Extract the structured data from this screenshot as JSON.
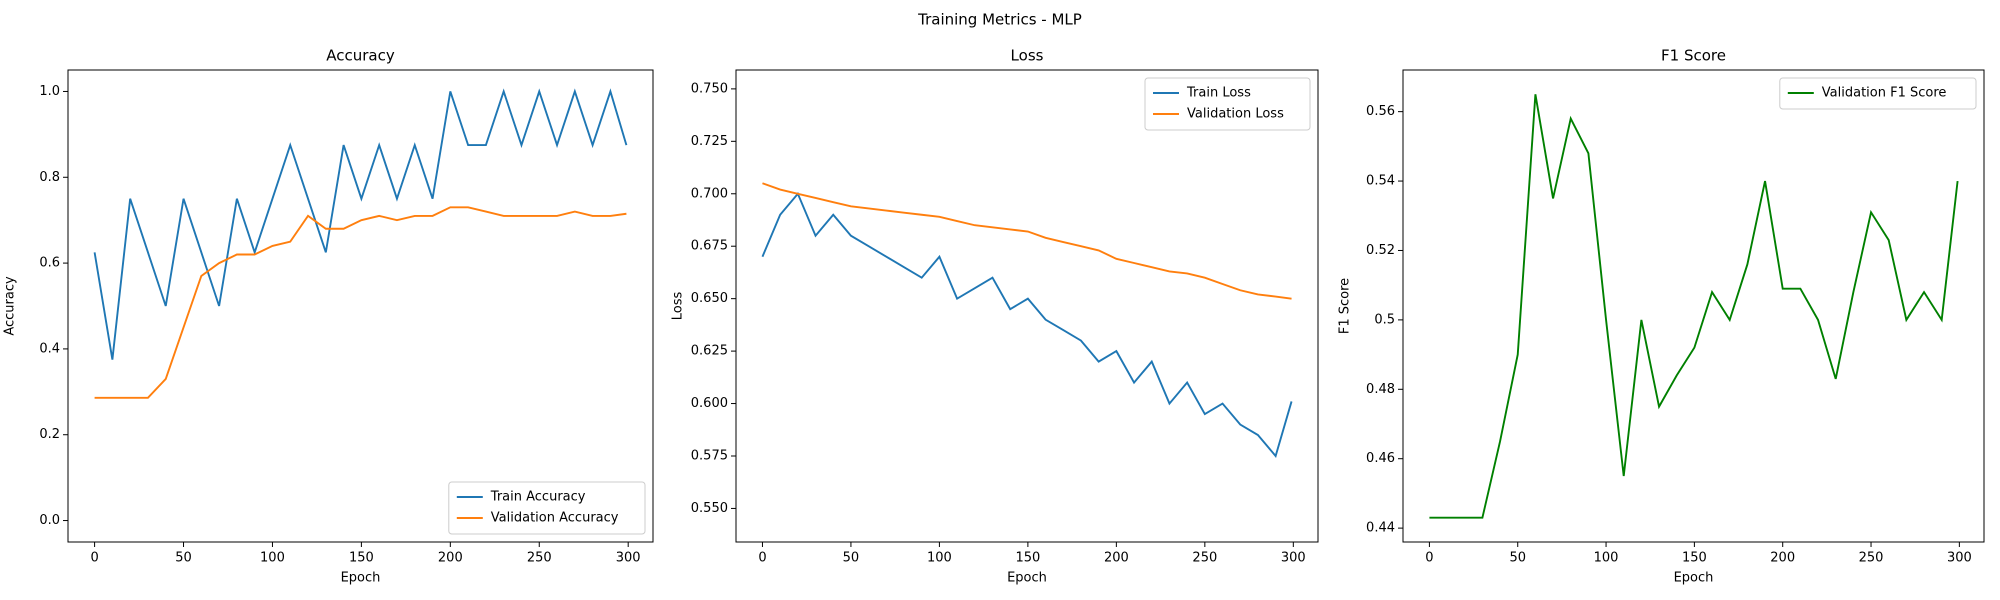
{
  "title": "Training Metrics - MLP",
  "chart_data": [
    {
      "type": "line",
      "title": "Accuracy",
      "xlabel": "Epoch",
      "ylabel": "Accuracy",
      "x": [
        0,
        10,
        20,
        30,
        40,
        50,
        60,
        70,
        80,
        90,
        100,
        110,
        120,
        130,
        140,
        150,
        160,
        170,
        180,
        190,
        200,
        210,
        220,
        230,
        240,
        250,
        260,
        270,
        280,
        290,
        299
      ],
      "series": [
        {
          "name": "Train Accuracy",
          "color": "#1f77b4",
          "values": [
            0.625,
            0.375,
            0.75,
            0.625,
            0.5,
            0.75,
            0.625,
            0.5,
            0.75,
            0.625,
            0.75,
            0.875,
            0.75,
            0.625,
            0.875,
            0.75,
            0.875,
            0.75,
            0.875,
            0.75,
            1.0,
            0.875,
            0.875,
            1.0,
            0.875,
            1.0,
            0.875,
            1.0,
            0.875,
            1.0,
            0.875
          ]
        },
        {
          "name": "Validation Accuracy",
          "color": "#ff7f0e",
          "values": [
            0.286,
            0.286,
            0.286,
            0.286,
            0.33,
            0.45,
            0.57,
            0.6,
            0.62,
            0.62,
            0.64,
            0.65,
            0.71,
            0.68,
            0.68,
            0.7,
            0.71,
            0.7,
            0.71,
            0.71,
            0.73,
            0.73,
            0.72,
            0.71,
            0.71,
            0.71,
            0.71,
            0.72,
            0.71,
            0.71,
            0.715
          ]
        }
      ],
      "xlim": [
        -14.95,
        313.95
      ],
      "ylim": [
        -0.05,
        1.05
      ],
      "xticks": [
        0,
        50,
        100,
        150,
        200,
        250,
        300
      ],
      "yticks": [
        {
          "value": 0,
          "label": "0.0"
        },
        {
          "value": 0.2,
          "label": "0.2"
        },
        {
          "value": 0.4,
          "label": "0.4"
        },
        {
          "value": 0.6,
          "label": "0.6"
        },
        {
          "value": 0.8,
          "label": "0.8"
        },
        {
          "value": 1,
          "label": "1.0"
        }
      ],
      "legend": "lower right"
    },
    {
      "type": "line",
      "title": "Loss",
      "xlabel": "Epoch",
      "ylabel": "Loss",
      "x": [
        0,
        10,
        20,
        30,
        40,
        50,
        60,
        70,
        80,
        90,
        100,
        110,
        120,
        130,
        140,
        150,
        160,
        170,
        180,
        190,
        200,
        210,
        220,
        230,
        240,
        250,
        260,
        270,
        280,
        290,
        299
      ],
      "series": [
        {
          "name": "Train Loss",
          "color": "#1f77b4",
          "values": [
            0.67,
            0.69,
            0.7,
            0.68,
            0.69,
            0.68,
            0.675,
            0.67,
            0.665,
            0.66,
            0.67,
            0.65,
            0.655,
            0.66,
            0.645,
            0.65,
            0.64,
            0.635,
            0.63,
            0.62,
            0.625,
            0.61,
            0.62,
            0.6,
            0.61,
            0.595,
            0.6,
            0.59,
            0.585,
            0.575,
            0.601
          ]
        },
        {
          "name": "Validation Loss",
          "color": "#ff7f0e",
          "values": [
            0.705,
            0.702,
            0.7,
            0.698,
            0.696,
            0.694,
            0.693,
            0.692,
            0.691,
            0.69,
            0.689,
            0.687,
            0.685,
            0.684,
            0.683,
            0.682,
            0.679,
            0.677,
            0.675,
            0.673,
            0.669,
            0.667,
            0.665,
            0.663,
            0.662,
            0.66,
            0.657,
            0.654,
            0.652,
            0.651,
            0.65
          ]
        }
      ],
      "xlim": [
        -14.95,
        313.95
      ],
      "ylim": [
        0.534,
        0.759
      ],
      "xticks": [
        0,
        50,
        100,
        150,
        200,
        250,
        300
      ],
      "yticks": [
        {
          "value": 0.55,
          "label": "0.550"
        },
        {
          "value": 0.575,
          "label": "0.575"
        },
        {
          "value": 0.6,
          "label": "0.600"
        },
        {
          "value": 0.625,
          "label": "0.625"
        },
        {
          "value": 0.65,
          "label": "0.650"
        },
        {
          "value": 0.675,
          "label": "0.675"
        },
        {
          "value": 0.7,
          "label": "0.700"
        },
        {
          "value": 0.725,
          "label": "0.725"
        },
        {
          "value": 0.75,
          "label": "0.750"
        }
      ],
      "legend": "upper right"
    },
    {
      "type": "line",
      "title": "F1 Score",
      "xlabel": "Epoch",
      "ylabel": "F1 Score",
      "x": [
        0,
        10,
        20,
        30,
        40,
        50,
        60,
        70,
        80,
        90,
        100,
        110,
        120,
        130,
        140,
        150,
        160,
        170,
        180,
        190,
        200,
        210,
        220,
        230,
        240,
        250,
        260,
        270,
        280,
        290,
        299
      ],
      "series": [
        {
          "name": "Validation F1 Score",
          "color": "#008000",
          "values": [
            0.443,
            0.443,
            0.443,
            0.443,
            0.465,
            0.49,
            0.565,
            0.535,
            0.558,
            0.548,
            0.5,
            0.455,
            0.5,
            0.475,
            0.484,
            0.492,
            0.508,
            0.5,
            0.516,
            0.54,
            0.509,
            0.509,
            0.5,
            0.483,
            0.508,
            0.531,
            0.523,
            0.5,
            0.508,
            0.5,
            0.54
          ]
        }
      ],
      "xlim": [
        -14.95,
        313.95
      ],
      "ylim": [
        0.436,
        0.572
      ],
      "xticks": [
        0,
        50,
        100,
        150,
        200,
        250,
        300
      ],
      "yticks": [
        0.44,
        0.46,
        0.48,
        0.5,
        0.52,
        0.54,
        0.56
      ],
      "legend": "upper right"
    }
  ]
}
